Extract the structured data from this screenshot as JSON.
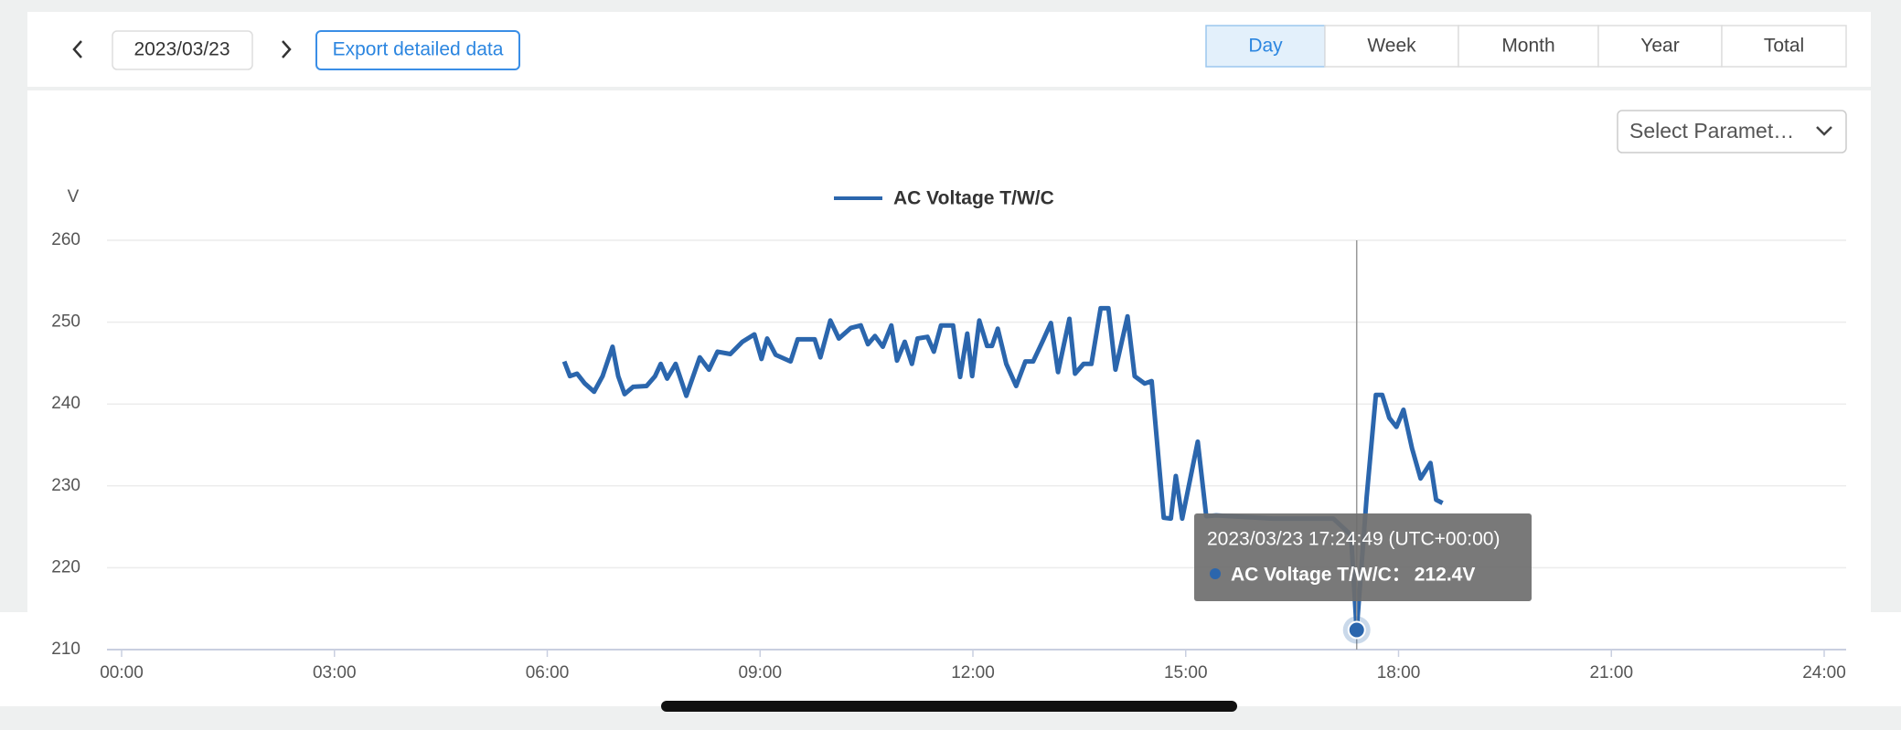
{
  "toolbar": {
    "date": "2023/03/23",
    "export": "Export detailed data",
    "periods": [
      "Day",
      "Week",
      "Month",
      "Year",
      "Total"
    ],
    "select": "Select Paramet…"
  },
  "chart_data": {
    "type": "line",
    "y_label": "V",
    "xlim": [
      0,
      24
    ],
    "xticks": [
      {
        "value": 0,
        "label": "00:00"
      },
      {
        "value": 3,
        "label": "03:00"
      },
      {
        "value": 6,
        "label": "06:00"
      },
      {
        "value": 9,
        "label": "09:00"
      },
      {
        "value": 12,
        "label": "12:00"
      },
      {
        "value": 15,
        "label": "15:00"
      },
      {
        "value": 18,
        "label": "18:00"
      },
      {
        "value": 21,
        "label": "21:00"
      },
      {
        "value": 24,
        "label": "24:00"
      }
    ],
    "ylim": [
      210,
      260
    ],
    "yticks": [
      210,
      220,
      230,
      240,
      250,
      260
    ],
    "grid": true,
    "x": [
      6.24,
      6.32,
      6.42,
      6.53,
      6.66,
      6.78,
      6.92,
      7.0,
      7.09,
      7.21,
      7.4,
      7.52,
      7.6,
      7.69,
      7.81,
      7.96,
      8.15,
      8.28,
      8.4,
      8.58,
      8.75,
      8.92,
      9.02,
      9.1,
      9.22,
      9.43,
      9.53,
      9.77,
      9.85,
      9.99,
      10.11,
      10.28,
      10.42,
      10.52,
      10.62,
      10.73,
      10.85,
      10.93,
      11.04,
      11.14,
      11.22,
      11.36,
      11.45,
      11.55,
      11.72,
      11.82,
      11.92,
      11.99,
      12.09,
      12.2,
      12.27,
      12.35,
      12.47,
      12.61,
      12.74,
      12.85,
      12.98,
      13.1,
      13.2,
      13.36,
      13.44,
      13.56,
      13.67,
      13.8,
      13.91,
      14.01,
      14.18,
      14.28,
      14.42,
      14.52,
      14.69,
      14.79,
      14.86,
      14.95,
      15.17,
      15.29,
      15.43,
      16.23,
      17.08,
      17.33,
      17.41,
      17.55,
      17.68,
      17.77,
      17.87,
      17.97,
      18.07,
      18.19,
      18.31,
      18.45,
      18.53,
      18.62
    ],
    "series": [
      {
        "name": "AC Voltage T/W/C",
        "color": "#2b66ad",
        "values": [
          245.2,
          243.4,
          243.7,
          242.5,
          241.5,
          243.4,
          247,
          243.4,
          241.2,
          242.1,
          242.2,
          243.4,
          244.9,
          243.1,
          244.9,
          241,
          245.7,
          244.2,
          246.4,
          246.1,
          247.6,
          248.5,
          245.5,
          248,
          246,
          245.2,
          247.9,
          247.9,
          245.7,
          250.2,
          248,
          249.3,
          249.6,
          247.3,
          248.3,
          247,
          249.6,
          245.3,
          247.6,
          244.9,
          248,
          248.2,
          246.4,
          249.6,
          249.6,
          243.3,
          248.6,
          243.4,
          250.2,
          247.1,
          247.1,
          249.2,
          244.9,
          242.2,
          245.2,
          245.2,
          247.6,
          249.9,
          243.9,
          250.4,
          243.7,
          244.9,
          244.9,
          251.7,
          251.7,
          244.2,
          250.7,
          243.4,
          242.5,
          242.8,
          226.1,
          226,
          231.2,
          226,
          235.4,
          226.3,
          226.4,
          226,
          226,
          224,
          212.4,
          228.6,
          241.1,
          241.1,
          238.3,
          237.2,
          239.3,
          234.6,
          230.9,
          232.8,
          228.3,
          227.9
        ]
      }
    ],
    "tooltip": {
      "time": "2023/03/23 17:24:49 (UTC+00:00)",
      "name": "AC Voltage T/W/C：",
      "x": 17.41,
      "value": 212.4,
      "value_label": "212.4V"
    }
  }
}
